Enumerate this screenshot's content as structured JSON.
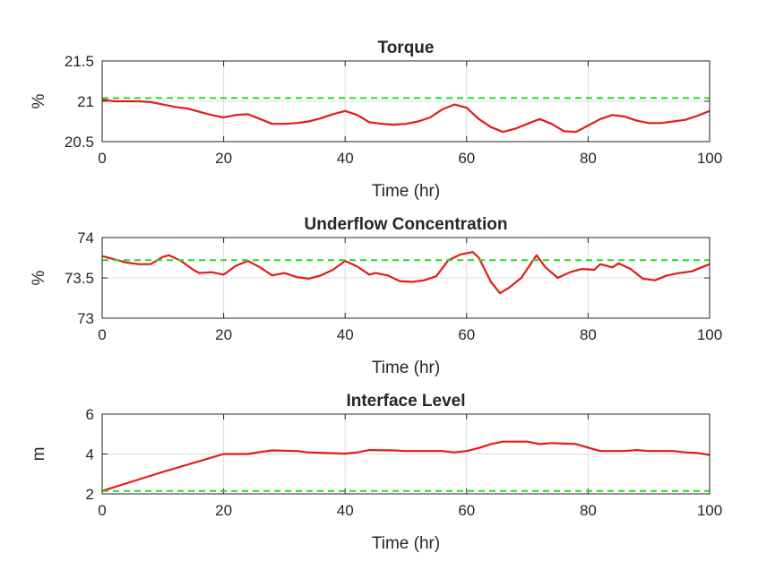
{
  "chart_data": [
    {
      "type": "line",
      "title": "Torque",
      "xlabel": "Time (hr)",
      "ylabel": "%",
      "xlim": [
        0,
        100
      ],
      "ylim": [
        20.5,
        21.5
      ],
      "xticks": [
        "0",
        "20",
        "40",
        "60",
        "80",
        "100"
      ],
      "yticks": [
        "20.5",
        "21",
        "21.5"
      ],
      "grid": true,
      "series": [
        {
          "color": "#e41a1c",
          "style": "solid",
          "x": [
            0,
            2,
            4,
            6,
            8,
            10,
            12,
            14,
            16,
            18,
            20,
            22,
            24,
            26,
            28,
            30,
            32,
            34,
            36,
            38,
            40,
            42,
            44,
            46,
            48,
            50,
            52,
            54,
            56,
            58,
            60,
            62,
            64,
            66,
            68,
            70,
            72,
            74,
            76,
            78,
            80,
            82,
            84,
            86,
            88,
            90,
            92,
            94,
            96,
            98,
            100
          ],
          "y": [
            21.02,
            21.0,
            21.0,
            21.0,
            20.99,
            20.96,
            20.93,
            20.91,
            20.87,
            20.83,
            20.8,
            20.83,
            20.84,
            20.78,
            20.72,
            20.72,
            20.73,
            20.75,
            20.79,
            20.84,
            20.88,
            20.83,
            20.74,
            20.72,
            20.71,
            20.72,
            20.75,
            20.8,
            20.9,
            20.96,
            20.92,
            20.78,
            20.68,
            20.62,
            20.66,
            20.72,
            20.78,
            20.72,
            20.63,
            20.62,
            20.7,
            20.78,
            20.83,
            20.81,
            20.76,
            20.73,
            20.73,
            20.75,
            20.77,
            20.82,
            20.88
          ]
        },
        {
          "color": "#22dd22",
          "style": "dashed",
          "x": [
            0,
            100
          ],
          "y": [
            21.04,
            21.04
          ]
        }
      ]
    },
    {
      "type": "line",
      "title": "Underflow Concentration",
      "xlabel": "Time (hr)",
      "ylabel": "%",
      "xlim": [
        0,
        100
      ],
      "ylim": [
        73,
        74
      ],
      "xticks": [
        "0",
        "20",
        "40",
        "60",
        "80",
        "100"
      ],
      "yticks": [
        "73",
        "73.5",
        "74"
      ],
      "grid": true,
      "series": [
        {
          "color": "#e41a1c",
          "style": "solid",
          "x": [
            0,
            2,
            4,
            6,
            8,
            10,
            11,
            13,
            15,
            16,
            18,
            20,
            22,
            24,
            26,
            28,
            30,
            32,
            34,
            36,
            38,
            40,
            42,
            44,
            45,
            47,
            49,
            51,
            53,
            55,
            57,
            59,
            61,
            62,
            64,
            65.5,
            67,
            69,
            71.5,
            73,
            75,
            77,
            79,
            81,
            82,
            84,
            85,
            87,
            89,
            91,
            93,
            95,
            97,
            100
          ],
          "y": [
            73.77,
            73.73,
            73.69,
            73.67,
            73.67,
            73.76,
            73.78,
            73.71,
            73.6,
            73.56,
            73.57,
            73.54,
            73.65,
            73.71,
            73.63,
            73.53,
            73.56,
            73.51,
            73.49,
            73.53,
            73.6,
            73.71,
            73.64,
            73.54,
            73.56,
            73.53,
            73.46,
            73.45,
            73.47,
            73.52,
            73.72,
            73.79,
            73.82,
            73.75,
            73.45,
            73.31,
            73.38,
            73.5,
            73.78,
            73.63,
            73.5,
            73.57,
            73.61,
            73.6,
            73.67,
            73.63,
            73.68,
            73.61,
            73.49,
            73.47,
            73.53,
            73.56,
            73.58,
            73.67
          ]
        },
        {
          "color": "#22dd22",
          "style": "dashed",
          "x": [
            0,
            100
          ],
          "y": [
            73.72,
            73.72
          ]
        }
      ]
    },
    {
      "type": "line",
      "title": "Interface Level",
      "xlabel": "Time (hr)",
      "ylabel": "m",
      "xlim": [
        0,
        100
      ],
      "ylim": [
        2,
        6
      ],
      "xticks": [
        "0",
        "20",
        "40",
        "60",
        "80",
        "100"
      ],
      "yticks": [
        "2",
        "4",
        "6"
      ],
      "grid": true,
      "series": [
        {
          "color": "#e41a1c",
          "style": "solid",
          "x": [
            0,
            10,
            20,
            24,
            26,
            28,
            32,
            34,
            40,
            42,
            44,
            48,
            50,
            56,
            58,
            60,
            62,
            64,
            66,
            70,
            72,
            74,
            78,
            80,
            82,
            86,
            88,
            90,
            94,
            96,
            98,
            100
          ],
          "y": [
            2.15,
            3.1,
            4.0,
            4.0,
            4.1,
            4.18,
            4.15,
            4.08,
            4.02,
            4.08,
            4.2,
            4.18,
            4.15,
            4.15,
            4.08,
            4.15,
            4.3,
            4.5,
            4.62,
            4.62,
            4.5,
            4.55,
            4.5,
            4.32,
            4.15,
            4.15,
            4.2,
            4.15,
            4.15,
            4.08,
            4.05,
            3.95
          ]
        },
        {
          "color": "#22dd22",
          "style": "dashed",
          "x": [
            0,
            100
          ],
          "y": [
            2.15,
            2.15
          ]
        }
      ]
    }
  ]
}
